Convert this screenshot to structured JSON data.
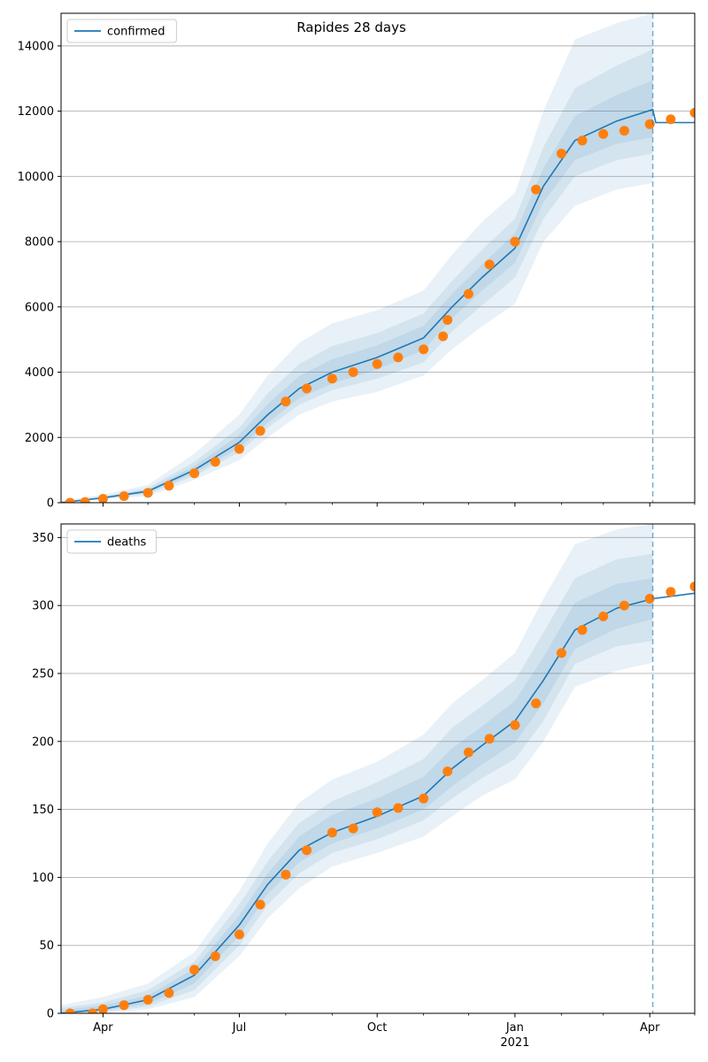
{
  "figure": {
    "title": "Rapides 28 days"
  },
  "colors": {
    "model_line": "#1f77b4",
    "observed_points": "#ff7f0e",
    "band": "#1f77b4",
    "forecast_divider": "#1f77b4",
    "grid": "#b0b0b0"
  },
  "x_axis": {
    "tick_labels": [
      "Apr",
      "Jul",
      "Oct",
      "Jan",
      "Apr"
    ],
    "tick_dates": [
      "2020-04-01",
      "2020-07-01",
      "2020-10-01",
      "2021-01-01",
      "2021-04-01"
    ],
    "year_label": "2021",
    "minor_tick_dates": [
      "2020-05-01",
      "2020-06-01",
      "2020-08-01",
      "2020-09-01",
      "2020-11-01",
      "2020-12-01",
      "2021-02-01",
      "2021-03-01",
      "2021-05-01"
    ],
    "range": [
      "2020-03-04",
      "2021-05-01"
    ]
  },
  "chart_data": [
    {
      "type": "line",
      "legend": [
        "confirmed"
      ],
      "legend_position": "upper-left",
      "grid": "horizontal",
      "ylim": [
        0,
        15000
      ],
      "yticks": [
        0,
        2000,
        4000,
        6000,
        8000,
        10000,
        12000,
        14000
      ],
      "forecast_start": "2021-04-03",
      "series": [
        {
          "name": "confirmed",
          "kind": "model-median",
          "x": [
            "2020-03-04",
            "2020-04-01",
            "2020-05-01",
            "2020-06-01",
            "2020-07-01",
            "2020-07-20",
            "2020-08-10",
            "2020-09-01",
            "2020-10-01",
            "2020-11-01",
            "2020-11-20",
            "2020-12-10",
            "2021-01-01",
            "2021-01-20",
            "2021-02-10",
            "2021-03-10",
            "2021-04-03",
            "2021-04-05",
            "2021-05-01"
          ],
          "y": [
            0,
            150,
            350,
            1000,
            1850,
            2700,
            3500,
            4000,
            4450,
            5050,
            6000,
            6900,
            7800,
            9700,
            11100,
            11700,
            12050,
            11650,
            11650
          ]
        },
        {
          "kind": "band-outer",
          "x": [
            "2020-03-04",
            "2020-04-01",
            "2020-05-01",
            "2020-06-01",
            "2020-07-01",
            "2020-07-20",
            "2020-08-10",
            "2020-09-01",
            "2020-10-01",
            "2020-11-01",
            "2020-11-20",
            "2020-12-10",
            "2021-01-01",
            "2021-01-20",
            "2021-02-10",
            "2021-03-10",
            "2021-04-03"
          ],
          "upper": [
            50,
            250,
            550,
            1500,
            2700,
            3900,
            4900,
            5500,
            5900,
            6500,
            7600,
            8600,
            9500,
            12000,
            14200,
            14700,
            15000
          ],
          "lower": [
            0,
            100,
            200,
            700,
            1300,
            2000,
            2700,
            3100,
            3400,
            3900,
            4700,
            5400,
            6100,
            8000,
            9100,
            9600,
            9800
          ]
        },
        {
          "kind": "band-middle",
          "x": [
            "2020-03-04",
            "2020-04-01",
            "2020-05-01",
            "2020-06-01",
            "2020-07-01",
            "2020-07-20",
            "2020-08-10",
            "2020-09-01",
            "2020-10-01",
            "2020-11-01",
            "2020-11-20",
            "2020-12-10",
            "2021-01-01",
            "2021-01-20",
            "2021-02-10",
            "2021-03-10",
            "2021-04-03"
          ],
          "upper": [
            30,
            200,
            450,
            1250,
            2300,
            3350,
            4250,
            4800,
            5200,
            5800,
            6800,
            7750,
            8700,
            10900,
            12700,
            13400,
            13900
          ],
          "lower": [
            0,
            120,
            270,
            820,
            1550,
            2300,
            3000,
            3450,
            3800,
            4300,
            5250,
            6050,
            6900,
            8700,
            10000,
            10500,
            10700
          ]
        },
        {
          "kind": "band-inner",
          "x": [
            "2020-03-04",
            "2020-04-01",
            "2020-05-01",
            "2020-06-01",
            "2020-07-01",
            "2020-07-20",
            "2020-08-10",
            "2020-09-01",
            "2020-10-01",
            "2020-11-01",
            "2020-11-20",
            "2020-12-10",
            "2021-01-01",
            "2021-01-20",
            "2021-02-10",
            "2021-03-10",
            "2021-04-03"
          ],
          "upper": [
            15,
            170,
            400,
            1120,
            2080,
            3030,
            3880,
            4400,
            4820,
            5420,
            6400,
            7300,
            8250,
            10250,
            11850,
            12500,
            12950
          ],
          "lower": [
            0,
            135,
            310,
            900,
            1680,
            2450,
            3200,
            3650,
            4080,
            4680,
            5650,
            6500,
            7350,
            9200,
            10500,
            11000,
            11200
          ]
        },
        {
          "kind": "observed",
          "x": [
            "2020-03-10",
            "2020-03-20",
            "2020-04-01",
            "2020-04-15",
            "2020-05-01",
            "2020-05-15",
            "2020-06-01",
            "2020-06-15",
            "2020-07-01",
            "2020-07-15",
            "2020-08-01",
            "2020-08-15",
            "2020-09-01",
            "2020-09-15",
            "2020-10-01",
            "2020-10-15",
            "2020-11-01",
            "2020-11-14",
            "2020-11-17",
            "2020-12-01",
            "2020-12-15",
            "2021-01-01",
            "2021-01-15",
            "2021-02-01",
            "2021-02-15",
            "2021-03-01",
            "2021-03-15",
            "2021-04-01",
            "2021-04-15",
            "2021-05-01"
          ],
          "y": [
            0,
            20,
            120,
            200,
            300,
            520,
            900,
            1250,
            1650,
            2200,
            3100,
            3500,
            3800,
            4000,
            4250,
            4450,
            4700,
            5100,
            5600,
            6400,
            7300,
            8000,
            9600,
            10700,
            11100,
            11300,
            11400,
            11600,
            11750,
            11950
          ]
        }
      ]
    },
    {
      "type": "line",
      "legend": [
        "deaths"
      ],
      "legend_position": "upper-left",
      "grid": "horizontal",
      "ylim": [
        0,
        360
      ],
      "yticks": [
        0,
        50,
        100,
        150,
        200,
        250,
        300,
        350
      ],
      "forecast_start": "2021-04-03",
      "series": [
        {
          "name": "deaths",
          "kind": "model-median",
          "x": [
            "2020-03-04",
            "2020-04-01",
            "2020-05-01",
            "2020-06-01",
            "2020-07-01",
            "2020-07-20",
            "2020-08-10",
            "2020-09-01",
            "2020-10-01",
            "2020-11-01",
            "2020-11-20",
            "2020-12-10",
            "2021-01-01",
            "2021-01-20",
            "2021-02-10",
            "2021-03-10",
            "2021-04-03",
            "2021-05-01"
          ],
          "y": [
            0,
            3,
            10,
            28,
            65,
            95,
            120,
            133,
            145,
            160,
            180,
            197,
            215,
            245,
            282,
            298,
            305,
            309
          ]
        },
        {
          "kind": "band-outer",
          "x": [
            "2020-03-04",
            "2020-04-01",
            "2020-05-01",
            "2020-06-01",
            "2020-07-01",
            "2020-07-20",
            "2020-08-10",
            "2020-09-01",
            "2020-10-01",
            "2020-11-01",
            "2020-11-20",
            "2020-12-10",
            "2021-01-01",
            "2021-01-20",
            "2021-02-10",
            "2021-03-10",
            "2021-04-03"
          ],
          "upper": [
            6,
            12,
            22,
            45,
            90,
            125,
            155,
            172,
            185,
            205,
            228,
            245,
            265,
            305,
            345,
            356,
            360
          ],
          "lower": [
            0,
            0,
            3,
            12,
            42,
            70,
            92,
            108,
            118,
            130,
            145,
            160,
            172,
            200,
            240,
            252,
            258
          ]
        },
        {
          "kind": "band-middle",
          "x": [
            "2020-03-04",
            "2020-04-01",
            "2020-05-01",
            "2020-06-01",
            "2020-07-01",
            "2020-07-20",
            "2020-08-10",
            "2020-09-01",
            "2020-10-01",
            "2020-11-01",
            "2020-11-20",
            "2020-12-10",
            "2021-01-01",
            "2021-01-20",
            "2021-02-10",
            "2021-03-10",
            "2021-04-03"
          ],
          "upper": [
            4,
            8,
            17,
            38,
            80,
            112,
            140,
            156,
            170,
            187,
            210,
            226,
            245,
            280,
            320,
            334,
            338
          ],
          "lower": [
            0,
            1,
            5,
            17,
            50,
            80,
            103,
            118,
            128,
            142,
            158,
            173,
            187,
            215,
            257,
            270,
            274
          ]
        },
        {
          "kind": "band-inner",
          "x": [
            "2020-03-04",
            "2020-04-01",
            "2020-05-01",
            "2020-06-01",
            "2020-07-01",
            "2020-07-20",
            "2020-08-10",
            "2020-09-01",
            "2020-10-01",
            "2020-11-01",
            "2020-11-20",
            "2020-12-10",
            "2021-01-01",
            "2021-01-20",
            "2021-02-10",
            "2021-03-10",
            "2021-04-03"
          ],
          "upper": [
            2,
            6,
            13,
            33,
            72,
            103,
            130,
            146,
            158,
            174,
            195,
            211,
            230,
            262,
            302,
            316,
            320
          ],
          "lower": [
            0,
            2,
            7,
            22,
            57,
            88,
            111,
            125,
            136,
            150,
            167,
            183,
            199,
            228,
            268,
            283,
            290
          ]
        },
        {
          "kind": "observed",
          "x": [
            "2020-03-10",
            "2020-03-25",
            "2020-04-01",
            "2020-04-15",
            "2020-05-01",
            "2020-05-15",
            "2020-06-01",
            "2020-06-15",
            "2020-07-01",
            "2020-07-15",
            "2020-08-01",
            "2020-08-15",
            "2020-09-01",
            "2020-09-15",
            "2020-10-01",
            "2020-10-15",
            "2020-11-01",
            "2020-11-17",
            "2020-12-01",
            "2020-12-15",
            "2021-01-01",
            "2021-01-15",
            "2021-02-01",
            "2021-02-15",
            "2021-03-01",
            "2021-03-15",
            "2021-04-01",
            "2021-04-15",
            "2021-05-01"
          ],
          "y": [
            0,
            0,
            3,
            6,
            10,
            15,
            32,
            42,
            58,
            80,
            102,
            120,
            133,
            136,
            148,
            151,
            158,
            178,
            192,
            202,
            212,
            228,
            265,
            282,
            292,
            300,
            305,
            310,
            314
          ]
        }
      ]
    }
  ]
}
